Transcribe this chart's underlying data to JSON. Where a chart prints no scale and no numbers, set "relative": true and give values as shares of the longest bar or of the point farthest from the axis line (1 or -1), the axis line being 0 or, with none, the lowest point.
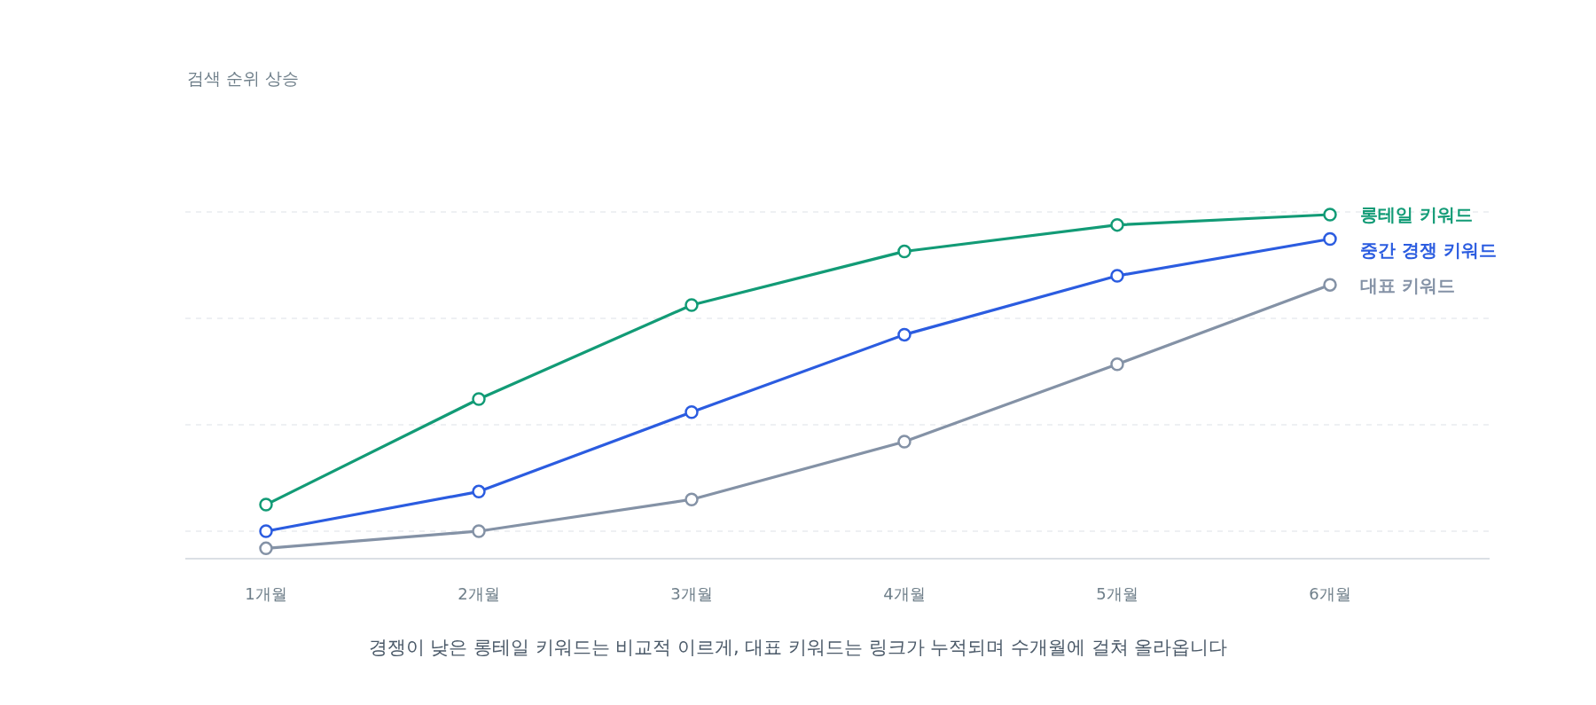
{
  "chart_data": {
    "type": "line",
    "title": "검색 순위 상승",
    "relative": true,
    "grid": "y",
    "legend": false,
    "marker": "circle",
    "line_style": "solid",
    "categories": [
      "1개월",
      "2개월",
      "3개월",
      "4개월",
      "5개월",
      "6개월"
    ],
    "series": [
      {
        "name": "롱테일 키워드",
        "color": "#129b76",
        "values": [
          0.157,
          0.464,
          0.737,
          0.893,
          0.97,
          1
        ]
      },
      {
        "name": "중간 경쟁 키워드",
        "color": "#2b5ce0",
        "values": [
          0.08,
          0.195,
          0.426,
          0.651,
          0.822,
          0.929
        ]
      },
      {
        "name": "대표 키워드",
        "color": "#8492a6",
        "values": [
          0.03,
          0.08,
          0.172,
          0.34,
          0.565,
          0.796
        ]
      }
    ],
    "annotations": [
      "경쟁이 낮은 롱테일 키워드는 비교적 이르게, 대표 키워드는 링크가 누적되며 수개월에 걸쳐 올라옵니다"
    ]
  }
}
